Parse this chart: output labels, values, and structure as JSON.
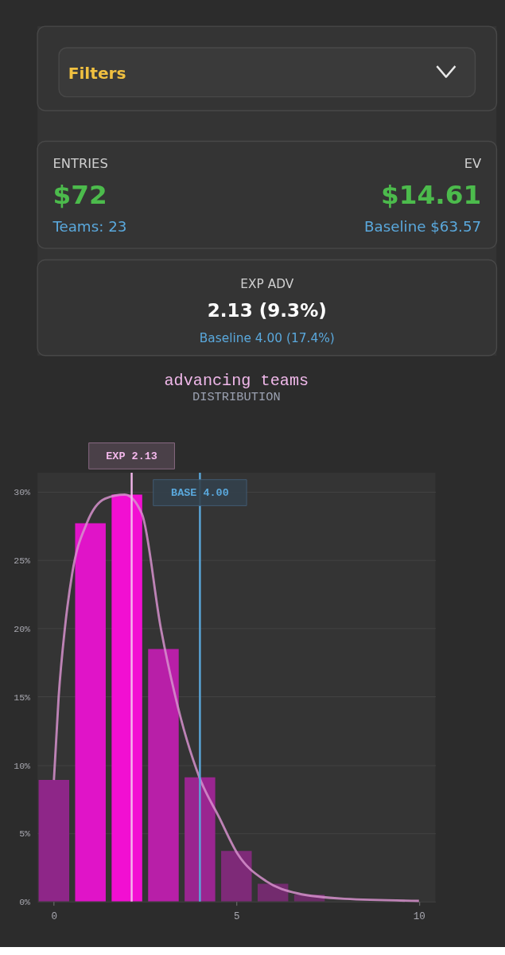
{
  "chart_data": [
    {
      "type": "other",
      "annotations": [
        "Filters",
        "ENTRIES",
        "$72",
        "Teams: 23",
        "EV",
        "$14.61",
        "Baseline $63.57",
        "EXP ADV",
        "2.13 (9.3%)",
        "Baseline 4.00 (17.4%)"
      ]
    },
    {
      "type": "bar",
      "title": "advancing teams",
      "subtitle": "DISTRIBUTION",
      "x": [
        0,
        1,
        2,
        3,
        4,
        5,
        6,
        7
      ],
      "series": [
        {
          "type": "bar",
          "colors": [
            "#8e2688",
            "#e014c8",
            "#f20fd2",
            "#b81fa8",
            "#9a2590",
            "#7e2a78",
            "#732b6e",
            "#6c2c68"
          ],
          "values": [
            8.9,
            27.7,
            29.8,
            18.5,
            9.1,
            3.7,
            1.3,
            0.5
          ]
        },
        {
          "type": "line",
          "color": "#d690cc",
          "x": [
            0,
            0.13,
            0.3,
            0.5,
            0.9,
            1.4,
            1.94,
            2.41,
            2.93,
            3.31,
            4.0,
            4.52,
            5.03,
            5.81,
            6.67,
            7.96,
            10
          ],
          "values": [
            8.9,
            15,
            20,
            24,
            27.7,
            29.5,
            29.8,
            28.4,
            20,
            15.2,
            9.0,
            6.2,
            3.5,
            1.5,
            0.6,
            0.2,
            0.05
          ]
        }
      ],
      "ref_lines": [
        {
          "axis": "x",
          "value": 2.13,
          "label": "EXP  2.13",
          "color": "#f4b8ec"
        },
        {
          "axis": "x",
          "value": 4.0,
          "label": "BASE  4.00",
          "color": "#5aa8dc"
        }
      ],
      "xlim": [
        -0.45,
        10.45
      ],
      "xticks": [
        0,
        5,
        10
      ],
      "ylim": [
        0,
        31.4
      ],
      "yticks": [
        {
          "value": 0,
          "label": "0%"
        },
        {
          "value": 5,
          "label": "5%"
        },
        {
          "value": 10,
          "label": "10%"
        },
        {
          "value": 15,
          "label": "15%"
        },
        {
          "value": 20,
          "label": "20%"
        },
        {
          "value": 25,
          "label": "25%"
        },
        {
          "value": 30,
          "label": "30%"
        }
      ],
      "grid": "y"
    }
  ]
}
